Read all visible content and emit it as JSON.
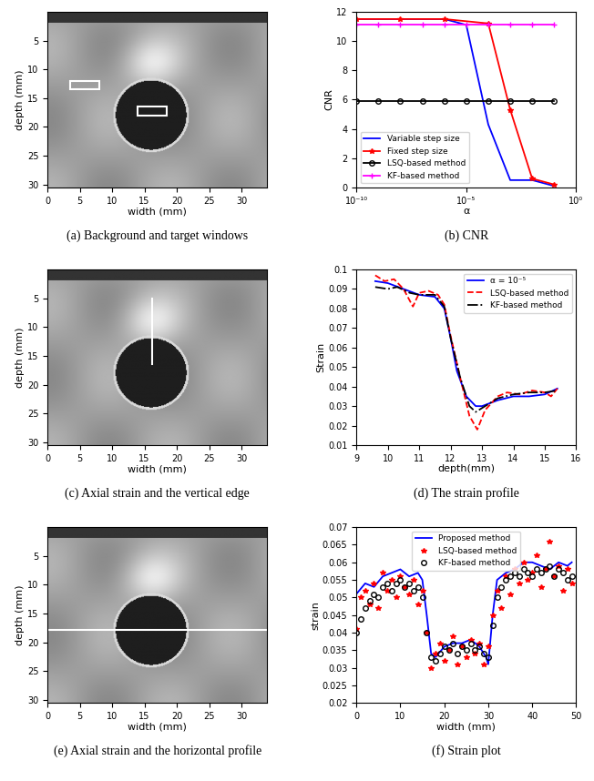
{
  "chart_data": [
    {
      "type": "image",
      "caption": "(a) Background and target windows",
      "x_label": "width (mm)",
      "y_label": "depth (mm)",
      "xlim": [
        0,
        34
      ],
      "ylim": [
        30.5,
        0
      ],
      "xticks": [
        0,
        5,
        10,
        15,
        20,
        25,
        30
      ],
      "yticks": [
        5,
        10,
        15,
        20,
        25,
        30
      ]
    },
    {
      "type": "line",
      "caption": "(b) CNR",
      "x_label": "α",
      "y_label": "CNR",
      "log": "x",
      "xlim": [
        1e-10,
        1
      ],
      "ylim": [
        0,
        12
      ],
      "xticks": [
        {
          "value": 1e-10,
          "label": "10⁻¹⁰"
        },
        {
          "value": 1e-05,
          "label": "10⁻⁵"
        },
        {
          "value": 1,
          "label": "10⁰"
        }
      ],
      "yticks": [
        0,
        2,
        4,
        6,
        8,
        10,
        12
      ],
      "legend": "lower left",
      "series": [
        {
          "name": "Variable step size",
          "color": "#0000ff",
          "marker": "none",
          "line_style": "solid",
          "x": [
            1e-10,
            1e-08,
            1e-06,
            1e-05,
            0.0001,
            0.001,
            0.01,
            0.1
          ],
          "values": [
            11.5,
            11.5,
            11.5,
            11.1,
            4.3,
            0.5,
            0.5,
            0.1
          ]
        },
        {
          "name": "Fixed step size",
          "color": "#ff0000",
          "marker": "star",
          "line_style": "solid",
          "x": [
            1e-10,
            1e-08,
            1e-06,
            0.0001,
            0.001,
            0.01,
            0.1
          ],
          "values": [
            11.5,
            11.5,
            11.5,
            11.2,
            5.3,
            0.6,
            0.2
          ]
        },
        {
          "name": "LSQ-based method",
          "color": "#000000",
          "marker": "circle",
          "line_style": "solid",
          "x": [
            1e-10,
            1e-09,
            1e-08,
            1e-07,
            1e-06,
            1e-05,
            0.0001,
            0.001,
            0.01,
            0.1
          ],
          "values": [
            5.9,
            5.9,
            5.9,
            5.9,
            5.9,
            5.9,
            5.9,
            5.9,
            5.9,
            5.9
          ]
        },
        {
          "name": "KF-based method",
          "color": "#ff00ff",
          "marker": "plus",
          "line_style": "solid",
          "x": [
            1e-10,
            1e-09,
            1e-08,
            1e-07,
            1e-06,
            1e-05,
            0.0001,
            0.001,
            0.01,
            0.1
          ],
          "values": [
            11.1,
            11.1,
            11.1,
            11.1,
            11.1,
            11.1,
            11.1,
            11.1,
            11.1,
            11.1
          ]
        }
      ]
    },
    {
      "type": "image",
      "caption": "(c) Axial strain and the vertical edge",
      "x_label": "width (mm)",
      "y_label": "depth (mm)",
      "xlim": [
        0,
        34
      ],
      "ylim": [
        30.5,
        0
      ],
      "xticks": [
        0,
        5,
        10,
        15,
        20,
        25,
        30
      ],
      "yticks": [
        5,
        10,
        15,
        20,
        25,
        30
      ]
    },
    {
      "type": "line",
      "caption": "(d) The strain profile",
      "x_label": "depth(mm)",
      "y_label": "Strain",
      "xlim": [
        9,
        16
      ],
      "ylim": [
        0.01,
        0.1
      ],
      "xticks": [
        9,
        10,
        11,
        12,
        13,
        14,
        15,
        16
      ],
      "yticks": [
        0.01,
        0.02,
        0.03,
        0.04,
        0.05,
        0.06,
        0.07,
        0.08,
        0.09,
        0.1
      ],
      "legend": "upper right",
      "series": [
        {
          "name": "α = 10⁻⁵",
          "color": "#0000ff",
          "marker": "none",
          "line_style": "solid",
          "x": [
            9.6,
            10,
            10.5,
            11,
            11.5,
            11.8,
            12,
            12.2,
            12.5,
            12.8,
            13,
            13.5,
            14,
            14.5,
            15,
            15.4
          ],
          "values": [
            0.094,
            0.093,
            0.09,
            0.087,
            0.086,
            0.08,
            0.065,
            0.048,
            0.035,
            0.03,
            0.03,
            0.033,
            0.035,
            0.035,
            0.036,
            0.039
          ]
        },
        {
          "name": "LSQ-based method",
          "color": "#ff0000",
          "marker": "none",
          "line_style": "dashed",
          "x": [
            9.6,
            9.9,
            10.2,
            10.5,
            10.8,
            11.0,
            11.3,
            11.6,
            11.8,
            12,
            12.3,
            12.6,
            12.85,
            13.1,
            13.5,
            13.8,
            14.2,
            14.6,
            15,
            15.2,
            15.4
          ],
          "values": [
            0.097,
            0.094,
            0.095,
            0.09,
            0.081,
            0.088,
            0.089,
            0.087,
            0.082,
            0.066,
            0.045,
            0.025,
            0.018,
            0.028,
            0.035,
            0.037,
            0.036,
            0.038,
            0.037,
            0.035,
            0.039
          ]
        },
        {
          "name": "KF-based method",
          "color": "#000000",
          "marker": "none",
          "line_style": "dashdot",
          "x": [
            9.6,
            10,
            10.3,
            10.7,
            11,
            11.5,
            11.8,
            12,
            12.3,
            12.6,
            12.8,
            13.1,
            13.5,
            14,
            14.5,
            15,
            15.4
          ],
          "values": [
            0.091,
            0.09,
            0.091,
            0.088,
            0.087,
            0.087,
            0.081,
            0.065,
            0.045,
            0.03,
            0.027,
            0.03,
            0.034,
            0.036,
            0.037,
            0.037,
            0.038
          ]
        }
      ]
    },
    {
      "type": "image",
      "caption": "(e) Axial strain and the horizontal profile",
      "x_label": "width (mm)",
      "y_label": "depth (mm)",
      "xlim": [
        0,
        34
      ],
      "ylim": [
        30.5,
        0
      ],
      "xticks": [
        0,
        5,
        10,
        15,
        20,
        25,
        30
      ],
      "yticks": [
        5,
        10,
        15,
        20,
        25,
        30
      ]
    },
    {
      "type": "line",
      "caption": "(f) Strain plot",
      "x_label": "width (mm)",
      "y_label": "strain",
      "xlim": [
        0,
        50
      ],
      "ylim": [
        0.02,
        0.07
      ],
      "xticks": [
        0,
        10,
        20,
        30,
        40,
        50
      ],
      "yticks": [
        0.02,
        0.025,
        0.03,
        0.035,
        0.04,
        0.045,
        0.05,
        0.055,
        0.06,
        0.065,
        0.07
      ],
      "legend": "upper center",
      "series": [
        {
          "name": "Proposed method",
          "color": "#0000ff",
          "marker": "none",
          "line_style": "solid",
          "x": [
            0,
            2,
            4,
            6,
            8,
            10,
            12,
            14,
            15,
            16,
            17,
            18,
            20,
            22,
            24,
            26,
            28,
            29.5,
            30,
            31,
            32,
            34,
            36,
            38,
            40,
            42,
            44,
            46,
            48,
            49
          ],
          "values": [
            0.051,
            0.054,
            0.053,
            0.056,
            0.057,
            0.058,
            0.056,
            0.057,
            0.055,
            0.045,
            0.034,
            0.033,
            0.036,
            0.037,
            0.037,
            0.038,
            0.036,
            0.033,
            0.031,
            0.045,
            0.055,
            0.057,
            0.058,
            0.06,
            0.06,
            0.059,
            0.058,
            0.06,
            0.059,
            0.06
          ]
        },
        {
          "name": "LSQ-based method",
          "color": "#ff0000",
          "marker": "star",
          "line_style": "none",
          "x": [
            0,
            1,
            2,
            3,
            4,
            5,
            6,
            7,
            8,
            9,
            10,
            11,
            12,
            13,
            14,
            15,
            16,
            17,
            18,
            19,
            20,
            21,
            22,
            23,
            24,
            25,
            26,
            27,
            28,
            29,
            30,
            31,
            32,
            33,
            34,
            35,
            36,
            37,
            38,
            39,
            40,
            41,
            42,
            43,
            44,
            45,
            46,
            47,
            48,
            49
          ],
          "values": [
            0.041,
            0.05,
            0.052,
            0.048,
            0.054,
            0.047,
            0.057,
            0.052,
            0.055,
            0.05,
            0.056,
            0.053,
            0.051,
            0.055,
            0.048,
            0.052,
            0.04,
            0.03,
            0.034,
            0.037,
            0.032,
            0.035,
            0.039,
            0.031,
            0.036,
            0.033,
            0.038,
            0.034,
            0.037,
            0.031,
            0.036,
            0.045,
            0.052,
            0.047,
            0.056,
            0.051,
            0.058,
            0.054,
            0.06,
            0.055,
            0.057,
            0.062,
            0.053,
            0.058,
            0.066,
            0.056,
            0.059,
            0.052,
            0.058,
            0.054
          ]
        },
        {
          "name": "KF-based method",
          "color": "#000000",
          "marker": "circle",
          "line_style": "none",
          "x": [
            0,
            1,
            2,
            3,
            4,
            5,
            6,
            7,
            8,
            9,
            10,
            11,
            12,
            13,
            14,
            15,
            16,
            17,
            18,
            19,
            20,
            21,
            22,
            23,
            24,
            25,
            26,
            27,
            28,
            29,
            30,
            31,
            32,
            33,
            34,
            35,
            36,
            37,
            38,
            39,
            40,
            41,
            42,
            43,
            44,
            45,
            46,
            47,
            48,
            49
          ],
          "values": [
            0.04,
            0.044,
            0.047,
            0.049,
            0.051,
            0.05,
            0.053,
            0.054,
            0.052,
            0.054,
            0.055,
            0.053,
            0.054,
            0.052,
            0.053,
            0.05,
            0.04,
            0.033,
            0.032,
            0.034,
            0.036,
            0.035,
            0.037,
            0.034,
            0.036,
            0.035,
            0.037,
            0.035,
            0.036,
            0.034,
            0.033,
            0.042,
            0.05,
            0.053,
            0.055,
            0.056,
            0.057,
            0.056,
            0.058,
            0.057,
            0.056,
            0.058,
            0.057,
            0.058,
            0.059,
            0.056,
            0.058,
            0.057,
            0.055,
            0.056
          ]
        }
      ]
    }
  ]
}
